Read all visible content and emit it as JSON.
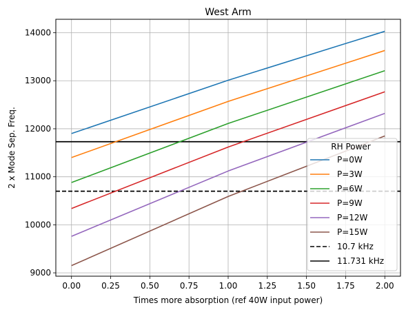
{
  "chart_data": {
    "type": "line",
    "title": "West Arm",
    "xlabel": "Times more absorption (ref 40W input power)",
    "ylabel": "2 x Mode Sep. Freq.",
    "xlim": [
      -0.1,
      2.1
    ],
    "ylim": [
      8930,
      14280
    ],
    "x_ticks": [
      0.0,
      0.25,
      0.5,
      0.75,
      1.0,
      1.25,
      1.5,
      1.75,
      2.0
    ],
    "x_tick_labels": [
      "0.00",
      "0.25",
      "0.50",
      "0.75",
      "1.00",
      "1.25",
      "1.50",
      "1.75",
      "2.00"
    ],
    "y_ticks": [
      9000,
      10000,
      11000,
      12000,
      13000,
      14000
    ],
    "y_tick_labels": [
      "9000",
      "10000",
      "11000",
      "12000",
      "13000",
      "14000"
    ],
    "grid": true,
    "legend": {
      "title": "RH Power",
      "placement": "center-right"
    },
    "x": [
      0,
      1,
      2
    ],
    "series": [
      {
        "name": "P=0W",
        "color": "#1f77b4",
        "values": [
          11900,
          13010,
          14030
        ]
      },
      {
        "name": "P=3W",
        "color": "#ff7f0e",
        "values": [
          11400,
          12570,
          13630
        ]
      },
      {
        "name": "P=6W",
        "color": "#2ca02c",
        "values": [
          10880,
          12110,
          13210
        ]
      },
      {
        "name": "P=9W",
        "color": "#d62728",
        "values": [
          10340,
          11620,
          12770
        ]
      },
      {
        "name": "P=12W",
        "color": "#9467bd",
        "values": [
          9760,
          11120,
          12320
        ]
      },
      {
        "name": "P=15W",
        "color": "#8c564b",
        "values": [
          9150,
          10590,
          11850
        ]
      }
    ],
    "hlines": [
      {
        "name": "10.7 kHz",
        "value": 10700,
        "color": "#000000",
        "style": "dashed"
      },
      {
        "name": "11.731 kHz",
        "value": 11731,
        "color": "#000000",
        "style": "solid"
      }
    ]
  }
}
